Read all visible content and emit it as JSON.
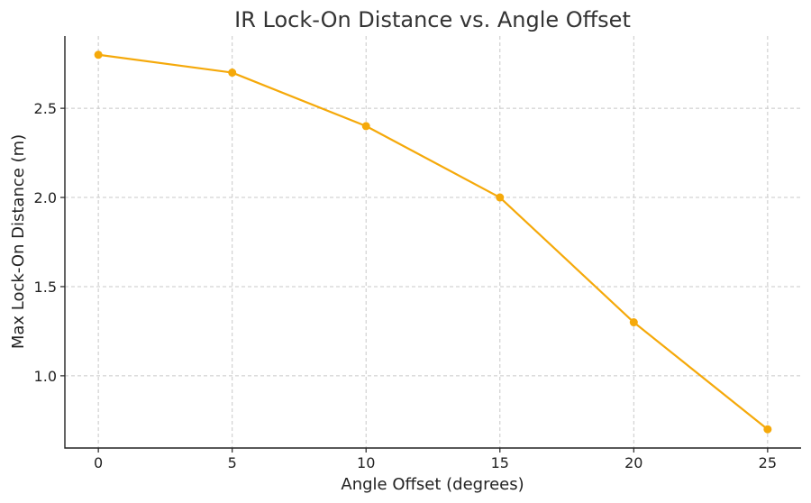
{
  "chart_data": {
    "type": "line",
    "title": "IR Lock-On Distance vs. Angle Offset",
    "xlabel": "Angle Offset (degrees)",
    "ylabel": "Max Lock-On Distance (m)",
    "x": [
      0,
      5,
      10,
      15,
      20,
      25
    ],
    "series": [
      {
        "values": [
          2.8,
          2.7,
          2.4,
          2.0,
          1.3,
          0.7
        ]
      }
    ],
    "xticks": [
      0,
      5,
      10,
      15,
      20,
      25
    ],
    "xtick_labels": [
      "0",
      "5",
      "10",
      "15",
      "20",
      "25"
    ],
    "yticks": [
      1.0,
      1.5,
      2.0,
      2.5
    ],
    "ytick_labels": [
      "1.0",
      "1.5",
      "2.0",
      "2.5"
    ],
    "xlim": [
      -1.25,
      26.25
    ],
    "ylim": [
      0.595,
      2.905
    ],
    "grid": true,
    "line_color": "#F5A90A",
    "marker": "circle"
  }
}
